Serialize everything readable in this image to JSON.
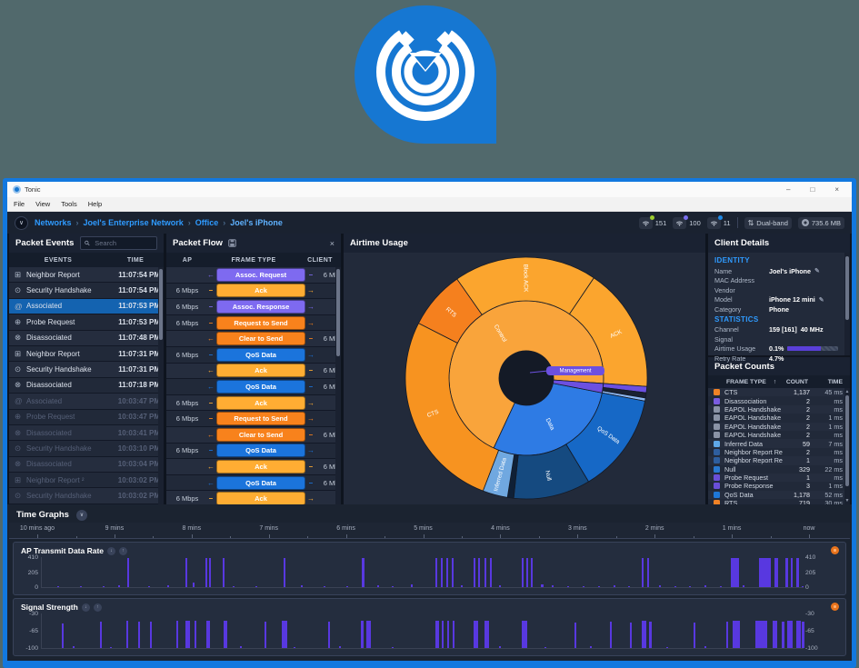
{
  "window": {
    "title": "Tonic",
    "menu": [
      "File",
      "View",
      "Tools",
      "Help"
    ],
    "controls": {
      "minimize": "–",
      "maximize": "□",
      "close": "×"
    }
  },
  "breadcrumb": {
    "items": [
      "Networks",
      "Joel's Enterprise Network",
      "Office",
      "Joel's iPhone"
    ],
    "separator": "›"
  },
  "statusbar": {
    "wifi": [
      {
        "value": "151",
        "dot": "#9CCC2E"
      },
      {
        "value": "100",
        "dot": "#7A6FF0"
      },
      {
        "value": "11",
        "dot": "#1E88E5"
      }
    ],
    "band": {
      "icon": "⇅",
      "label": "Dual-band"
    },
    "storage": {
      "label": "735.6 MB"
    }
  },
  "packet_events": {
    "title": "Packet Events",
    "search_placeholder": "Search",
    "columns": [
      "EVENTS",
      "TIME"
    ],
    "icon_glyphs": {
      "neighbor-report": "⊞",
      "security-handshake": "⊙",
      "associated": "@",
      "probe-request": "⊕",
      "disassociated": "⊗"
    },
    "rows": [
      {
        "icon": "neighbor-report",
        "label": "Neighbor Report",
        "time": "11:07:54 PM"
      },
      {
        "icon": "security-handshake",
        "label": "Security Handshake",
        "time": "11:07:54 PM"
      },
      {
        "icon": "associated",
        "label": "Associated",
        "time": "11:07:53 PM",
        "selected": true
      },
      {
        "icon": "probe-request",
        "label": "Probe Request",
        "time": "11:07:53 PM"
      },
      {
        "icon": "disassociated",
        "label": "Disassociated",
        "time": "11:07:48 PM"
      },
      {
        "icon": "neighbor-report",
        "label": "Neighbor Report",
        "time": "11:07:31 PM"
      },
      {
        "icon": "security-handshake",
        "label": "Security Handshake",
        "time": "11:07:31 PM"
      },
      {
        "icon": "disassociated",
        "label": "Disassociated",
        "time": "11:07:18 PM"
      },
      {
        "icon": "associated",
        "label": "Associated",
        "time": "10:03:47 PM",
        "dim": true
      },
      {
        "icon": "probe-request",
        "label": "Probe Request",
        "time": "10:03:47 PM",
        "dim": true
      },
      {
        "icon": "disassociated",
        "label": "Disassociated",
        "time": "10:03:41 PM",
        "dim": true
      },
      {
        "icon": "security-handshake",
        "label": "Security Handshake",
        "time": "10:03:10 PM",
        "dim": true
      },
      {
        "icon": "disassociated",
        "label": "Disassociated",
        "time": "10:03:04 PM",
        "dim": true
      },
      {
        "icon": "neighbor-report",
        "label": "Neighbor Report ²",
        "time": "10:03:02 PM",
        "dim": true
      },
      {
        "icon": "security-handshake",
        "label": "Security Handshake",
        "time": "10:03:02 PM",
        "dim": true
      }
    ]
  },
  "packet_flow": {
    "title": "Packet Flow",
    "columns": [
      "AP",
      "FRAME TYPE",
      "CLIENT"
    ],
    "colors": {
      "purple": "#7E6AF0",
      "amber": "#FFAD33",
      "orange": "#F8821C",
      "blue": "#1B74DC"
    },
    "arrows": {
      "left": "←",
      "right": "→",
      "stub": "–"
    },
    "rows": [
      {
        "ap": "",
        "label": "Assoc. Request",
        "client": "6 Mbps",
        "dir": "left",
        "color": "purple"
      },
      {
        "ap": "6 Mbps",
        "label": "Ack",
        "client": "",
        "dir": "right",
        "color": "amber"
      },
      {
        "ap": "6 Mbps",
        "label": "Assoc. Response",
        "client": "",
        "dir": "right",
        "color": "purple"
      },
      {
        "ap": "6 Mbps",
        "label": "Request to Send",
        "client": "",
        "dir": "right",
        "color": "orange"
      },
      {
        "ap": "",
        "label": "Clear to Send",
        "client": "6 Mbps",
        "dir": "left",
        "color": "orange"
      },
      {
        "ap": "6 Mbps",
        "label": "QoS Data",
        "client": "",
        "dir": "right",
        "color": "blue"
      },
      {
        "ap": "",
        "label": "Ack",
        "client": "6 Mbps",
        "dir": "left",
        "color": "amber"
      },
      {
        "ap": "",
        "label": "QoS Data",
        "client": "6 Mbps",
        "dir": "left",
        "color": "blue"
      },
      {
        "ap": "6 Mbps",
        "label": "Ack",
        "client": "",
        "dir": "right",
        "color": "amber"
      },
      {
        "ap": "6 Mbps",
        "label": "Request to Send",
        "client": "",
        "dir": "right",
        "color": "orange"
      },
      {
        "ap": "",
        "label": "Clear to Send",
        "client": "6 Mbps",
        "dir": "left",
        "color": "orange"
      },
      {
        "ap": "6 Mbps",
        "label": "QoS Data",
        "client": "",
        "dir": "right",
        "color": "blue"
      },
      {
        "ap": "",
        "label": "Ack",
        "client": "6 Mbps",
        "dir": "left",
        "color": "amber"
      },
      {
        "ap": "",
        "label": "QoS Data",
        "client": "6 Mbps",
        "dir": "left",
        "color": "blue"
      },
      {
        "ap": "6 Mbps",
        "label": "Ack",
        "client": "",
        "dir": "right",
        "color": "amber"
      },
      {
        "ap": "6 Mbps",
        "label": "Request to Send",
        "client": "",
        "dir": "right",
        "color": "orange"
      }
    ]
  },
  "airtime": {
    "title": "Airtime Usage"
  },
  "client_details": {
    "title": "Client Details",
    "identity_title": "IDENTITY",
    "statistics_title": "STATISTICS",
    "identity": [
      {
        "label": "Name",
        "value": "Joel's iPhone",
        "edit": true
      },
      {
        "label": "MAC Address",
        "value": ""
      },
      {
        "label": "Vendor",
        "value": ""
      },
      {
        "label": "Model",
        "value": "iPhone 12 mini",
        "edit": true
      },
      {
        "label": "Category",
        "value": "Phone"
      }
    ],
    "statistics": [
      {
        "label": "Channel",
        "value": "159 [161]",
        "value2": "40 MHz"
      },
      {
        "label": "Signal",
        "value": ""
      },
      {
        "label": "Airtime Usage",
        "value": "0.1%",
        "bar": 65
      },
      {
        "label": "Retry Rate",
        "value": "4.7%"
      }
    ]
  },
  "packet_counts": {
    "title": "Packet Counts",
    "columns": [
      "FRAME TYPE",
      "COUNT",
      "TIME"
    ],
    "sort_icon": "↑",
    "rows": [
      {
        "color": "#F08226",
        "label": "CTS",
        "count": "1,137",
        "time": "45 ms"
      },
      {
        "color": "#7A5CE0",
        "label": "Disassociation",
        "count": "2",
        "time": "ms"
      },
      {
        "color": "#8A93A6",
        "label": "EAPOL Handshake #1",
        "count": "2",
        "time": "ms"
      },
      {
        "color": "#8A93A6",
        "label": "EAPOL Handshake #2",
        "count": "2",
        "time": "1 ms"
      },
      {
        "color": "#8A93A6",
        "label": "EAPOL Handshake #3",
        "count": "2",
        "time": "1 ms"
      },
      {
        "color": "#8A93A6",
        "label": "EAPOL Handshake #4",
        "count": "2",
        "time": "ms"
      },
      {
        "color": "#5FA8E8",
        "label": "Inferred Data",
        "count": "59",
        "time": "7 ms"
      },
      {
        "color": "#2E5E9E",
        "label": "Neighbor Report Request",
        "count": "2",
        "time": "ms"
      },
      {
        "color": "#2E5E9E",
        "label": "Neighbor Report Respons",
        "count": "1",
        "time": "ms"
      },
      {
        "color": "#2979D0",
        "label": "Null",
        "count": "329",
        "time": "22 ms"
      },
      {
        "color": "#6A4FD8",
        "label": "Probe Request",
        "count": "1",
        "time": "ms"
      },
      {
        "color": "#6A4FD8",
        "label": "Probe Response",
        "count": "3",
        "time": "1 ms"
      },
      {
        "color": "#1E78D8",
        "label": "QoS Data",
        "count": "1,178",
        "time": "52 ms"
      },
      {
        "color": "#F08226",
        "label": "RTS",
        "count": "719",
        "time": "30 ms"
      }
    ]
  },
  "time_graphs": {
    "title": "Time Graphs",
    "ruler": [
      "10 mins ago",
      "9 mins",
      "8 mins",
      "7 mins",
      "6 mins",
      "5 mins",
      "4 mins",
      "3 mins",
      "2 mins",
      "1 mins",
      "now"
    ]
  },
  "chart_data": [
    {
      "type": "sunburst",
      "title": "Airtime Usage",
      "hole_color": "#141A26",
      "accent_bar_color": "#5838E0",
      "inner": [
        {
          "label": "Control",
          "start": 205,
          "end": 454,
          "color": "#F9A43B"
        },
        {
          "label": "Data",
          "start": 101,
          "end": 205,
          "color": "#2E7BE4"
        },
        {
          "label": "Management",
          "start": 94,
          "end": 101,
          "color": "#6C50E0"
        }
      ],
      "outer": [
        {
          "label": "Block ACK",
          "start": 325,
          "end": 394,
          "color": "#FBA52E"
        },
        {
          "label": "ACK",
          "start": 34,
          "end": 94,
          "color": "#FBA52E"
        },
        {
          "label": "",
          "start": 94,
          "end": 97,
          "color": "#6C50E0"
        },
        {
          "label": "",
          "start": 97,
          "end": 99.5,
          "color": "#1A2132"
        },
        {
          "label": "",
          "start": 99.5,
          "end": 101,
          "color": "#8FB8F2"
        },
        {
          "label": "QoS Data",
          "start": 101,
          "end": 149,
          "color": "#1668C6"
        },
        {
          "label": "Null",
          "start": 149,
          "end": 186,
          "color": "#154A80"
        },
        {
          "label": "",
          "start": 186,
          "end": 189,
          "color": "#0F2036"
        },
        {
          "label": "Inferred Data",
          "start": 189,
          "end": 201,
          "color": "#70A8E0"
        },
        {
          "label": "CTS",
          "start": 201,
          "end": 297,
          "color": "#F79320"
        },
        {
          "label": "RTS",
          "start": 297,
          "end": 325,
          "color": "#F5801E"
        }
      ]
    },
    {
      "type": "bar",
      "title": "AP Transmit Data Rate",
      "yticks": [
        "410",
        "205",
        "0"
      ],
      "ylim": [
        0,
        410
      ],
      "bars": [
        [
          11.2,
          98,
          2
        ],
        [
          18.9,
          98,
          2
        ],
        [
          21.5,
          97,
          2
        ],
        [
          21.9,
          97,
          2
        ],
        [
          23.8,
          98,
          2
        ],
        [
          31.7,
          98,
          2
        ],
        [
          42.0,
          98,
          3
        ],
        [
          51.7,
          98,
          2
        ],
        [
          52.4,
          97,
          2
        ],
        [
          53.1,
          98,
          2
        ],
        [
          53.8,
          97,
          2
        ],
        [
          56.7,
          98,
          2
        ],
        [
          57.3,
          97,
          2
        ],
        [
          58.1,
          98,
          2
        ],
        [
          58.8,
          97,
          2
        ],
        [
          63.0,
          98,
          2
        ],
        [
          63.6,
          97,
          2
        ],
        [
          64.2,
          98,
          2
        ],
        [
          78.8,
          98,
          2
        ],
        [
          79.5,
          97,
          2
        ],
        [
          90.5,
          98,
          9
        ],
        [
          94.2,
          98,
          13
        ],
        [
          96.2,
          97,
          4
        ],
        [
          97.6,
          98,
          3
        ],
        [
          98.3,
          97,
          2
        ],
        [
          99.1,
          98,
          3
        ],
        [
          2,
          3,
          2
        ],
        [
          5,
          4,
          2
        ],
        [
          8,
          3,
          2
        ],
        [
          10,
          5,
          2
        ],
        [
          14,
          4,
          2
        ],
        [
          16.5,
          5,
          2
        ],
        [
          19.8,
          16,
          2
        ],
        [
          25,
          4,
          2
        ],
        [
          28,
          3,
          2
        ],
        [
          34,
          5,
          2
        ],
        [
          37,
          4,
          2
        ],
        [
          40,
          3,
          2
        ],
        [
          44,
          6,
          2
        ],
        [
          46,
          4,
          2
        ],
        [
          48.5,
          8,
          2
        ],
        [
          55,
          5,
          2
        ],
        [
          60,
          6,
          2
        ],
        [
          65.5,
          8,
          3
        ],
        [
          67,
          5,
          2
        ],
        [
          69,
          4,
          2
        ],
        [
          71,
          3,
          2
        ],
        [
          73,
          4,
          2
        ],
        [
          75,
          5,
          2
        ],
        [
          77,
          4,
          2
        ],
        [
          81,
          6,
          2
        ],
        [
          83,
          4,
          2
        ],
        [
          85,
          3,
          2
        ],
        [
          87,
          5,
          2
        ],
        [
          89,
          4,
          2
        ],
        [
          92,
          6,
          2
        ],
        [
          99.8,
          4,
          2
        ]
      ]
    },
    {
      "type": "bar",
      "title": "Signal Strength",
      "yticks": [
        "-30",
        "-65",
        "-100"
      ],
      "ylim": [
        -100,
        -30
      ],
      "bars": [
        [
          2.6,
          72,
          2
        ],
        [
          7.6,
          76,
          2
        ],
        [
          11.1,
          78,
          2
        ],
        [
          12.7,
          76,
          2
        ],
        [
          14.2,
          77,
          2
        ],
        [
          17.7,
          78,
          2
        ],
        [
          18.9,
          80,
          5
        ],
        [
          20.1,
          78,
          2
        ],
        [
          21.6,
          79,
          4
        ],
        [
          23.9,
          78,
          4
        ],
        [
          29.2,
          77,
          2
        ],
        [
          31.5,
          80,
          6
        ],
        [
          37.6,
          77,
          2
        ],
        [
          41.9,
          79,
          3
        ],
        [
          42.6,
          80,
          5
        ],
        [
          51.7,
          79,
          4
        ],
        [
          52.5,
          78,
          2
        ],
        [
          53.2,
          79,
          2
        ],
        [
          53.9,
          78,
          2
        ],
        [
          56.7,
          80,
          5
        ],
        [
          58.1,
          79,
          5
        ],
        [
          63.0,
          80,
          6
        ],
        [
          69.9,
          75,
          2
        ],
        [
          74.6,
          76,
          2
        ],
        [
          77.2,
          75,
          2
        ],
        [
          78.8,
          79,
          5
        ],
        [
          79.7,
          77,
          3
        ],
        [
          85.6,
          75,
          2
        ],
        [
          89.8,
          76,
          2
        ],
        [
          90.7,
          80,
          8
        ],
        [
          93.7,
          80,
          13
        ],
        [
          96.0,
          79,
          5
        ],
        [
          97.1,
          77,
          3
        ],
        [
          97.8,
          80,
          6
        ],
        [
          99.1,
          79,
          5
        ],
        [
          99.8,
          76,
          3
        ],
        [
          4,
          4,
          2
        ],
        [
          9,
          3,
          2
        ],
        [
          26,
          4,
          2
        ],
        [
          33,
          3,
          2
        ],
        [
          39,
          4,
          2
        ],
        [
          46,
          3,
          2
        ],
        [
          60,
          4,
          2
        ],
        [
          66,
          3,
          2
        ],
        [
          72,
          4,
          2
        ],
        [
          82,
          3,
          2
        ],
        [
          87,
          4,
          2
        ]
      ]
    }
  ]
}
